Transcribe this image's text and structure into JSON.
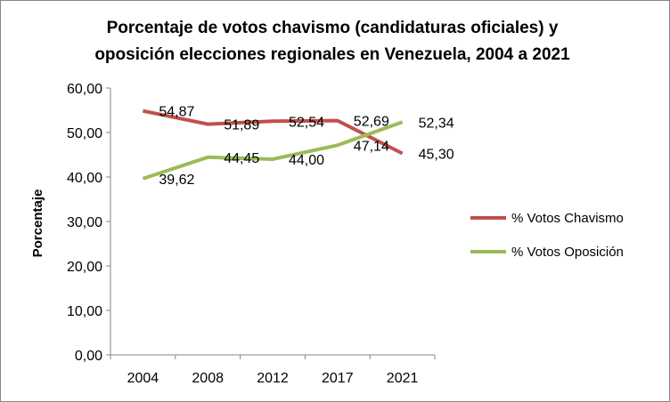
{
  "chart_data": {
    "type": "line",
    "title_lines": [
      "Porcentaje de votos chavismo (candidaturas oficiales) y",
      "oposición elecciones regionales en Venezuela, 2004 a 2021"
    ],
    "xlabel": "",
    "ylabel": "Porcentaje",
    "categories": [
      "2004",
      "2008",
      "2012",
      "2017",
      "2021"
    ],
    "ylim": [
      0,
      60
    ],
    "yticks": [
      "0,00",
      "10,00",
      "20,00",
      "30,00",
      "40,00",
      "50,00",
      "60,00"
    ],
    "grid": false,
    "legend_position": "right",
    "series": [
      {
        "name": "% Votos Chavismo",
        "color": "#C0504D",
        "values": [
          54.87,
          51.89,
          52.54,
          52.69,
          45.3
        ],
        "labels": [
          "54,87",
          "51,89",
          "52,54",
          "52,69",
          "45,30"
        ]
      },
      {
        "name": "% Votos Oposición",
        "color": "#9BBB59",
        "values": [
          39.62,
          44.45,
          44.0,
          47.14,
          52.34
        ],
        "labels": [
          "39,62",
          "44,45",
          "44,00",
          "47,14",
          "52,34"
        ]
      }
    ]
  }
}
